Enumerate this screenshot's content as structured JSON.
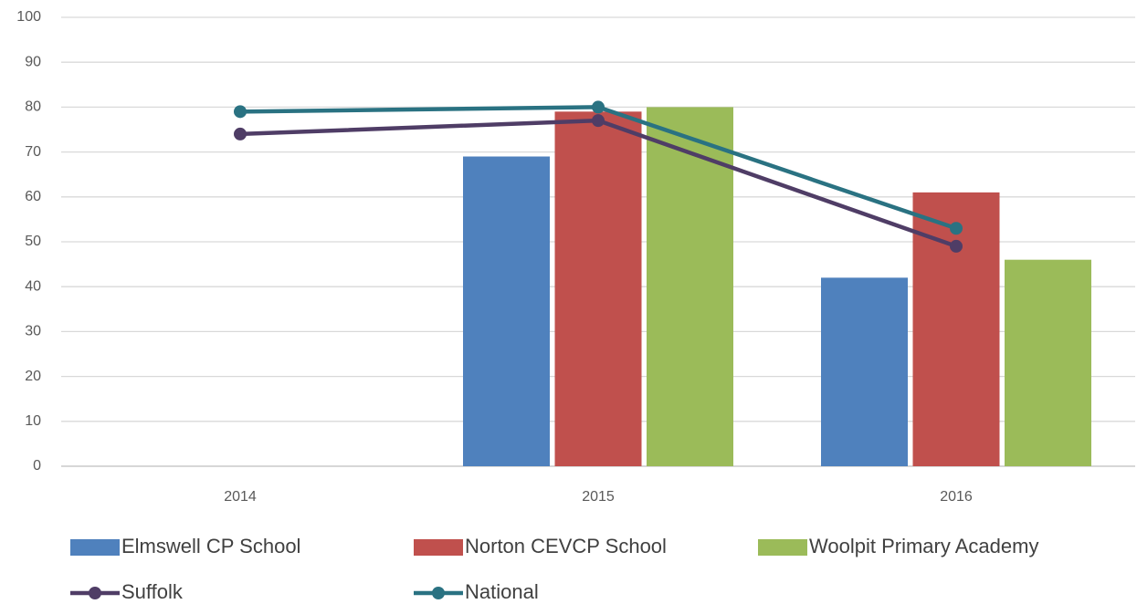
{
  "chart_data": {
    "type": "bar",
    "categories": [
      "2014",
      "2015",
      "2016"
    ],
    "series": [
      {
        "name": "Elmswell CP School",
        "type": "bar",
        "color": "#4f81bd",
        "values": [
          null,
          69,
          42
        ]
      },
      {
        "name": "Norton CEVCP School",
        "type": "bar",
        "color": "#c0504d",
        "values": [
          null,
          79,
          61
        ]
      },
      {
        "name": "Woolpit Primary Academy",
        "type": "bar",
        "color": "#9bbb59",
        "values": [
          null,
          80,
          46
        ]
      },
      {
        "name": "Suffolk",
        "type": "line",
        "color": "#4f3d66",
        "values": [
          74,
          77,
          49
        ]
      },
      {
        "name": "National",
        "type": "line",
        "color": "#2a7282",
        "values": [
          79,
          80,
          53
        ]
      }
    ],
    "ylim": [
      0,
      100
    ],
    "yticks": [
      0,
      10,
      20,
      30,
      40,
      50,
      60,
      70,
      80,
      90,
      100
    ],
    "grid": true
  }
}
